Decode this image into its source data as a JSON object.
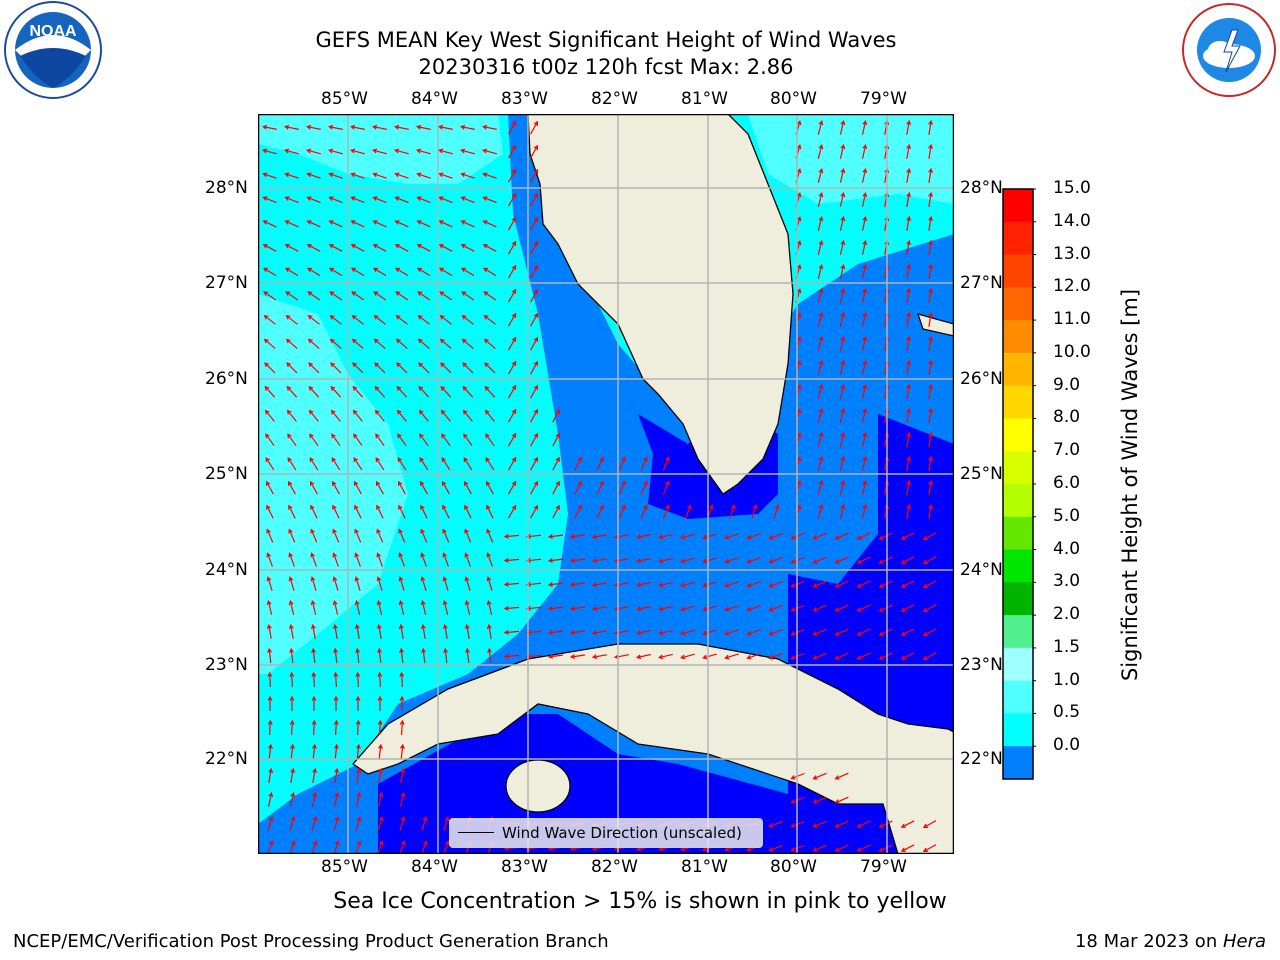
{
  "title_line1": "GEFS MEAN Key West Significant Height of Wind Waves",
  "title_line2": "20230316 t00z 120h fcst   Max: 2.86",
  "lon_ticks": [
    "85°W",
    "84°W",
    "83°W",
    "82°W",
    "81°W",
    "80°W",
    "79°W"
  ],
  "lat_ticks": [
    "28°N",
    "27°N",
    "26°N",
    "25°N",
    "24°N",
    "23°N",
    "22°N"
  ],
  "legend_label": "Wind Wave Direction (unscaled)",
  "colorbar": {
    "title": "Significant Height of Wind Waves [m]",
    "ticks": [
      "15.0",
      "14.0",
      "13.0",
      "12.0",
      "11.0",
      "10.0",
      "9.0",
      "8.0",
      "7.0",
      "6.0",
      "5.0",
      "4.0",
      "3.0",
      "2.0",
      "1.5",
      "1.0",
      "0.5",
      "0.0"
    ],
    "colors": [
      "#ff0000",
      "#ff2200",
      "#ff4400",
      "#ff6600",
      "#ff8c00",
      "#ffb400",
      "#ffd700",
      "#ffff00",
      "#d7ff00",
      "#b4ff00",
      "#64e600",
      "#00e600",
      "#00b400",
      "#50f08c",
      "#a0ffff",
      "#50ffff",
      "#00ffff",
      "#0080ff",
      "#0000ff"
    ]
  },
  "footnote": "Sea Ice Concentration > 15% is shown in pink to yellow",
  "credit_left": "NCEP/EMC/Verification Post Processing Product Generation Branch",
  "credit_right_prefix": "18 Mar 2023 on ",
  "credit_right_host": "Hera",
  "noaa_logo_text": "NOAA",
  "colors": {
    "land": "#efeedd",
    "wave_0": "#0000ff",
    "wave_05": "#0080ff",
    "wave_1": "#00ffff",
    "wave_15": "#50ffff",
    "arrow": "#ff0000",
    "grid": "#b4b4b4"
  }
}
